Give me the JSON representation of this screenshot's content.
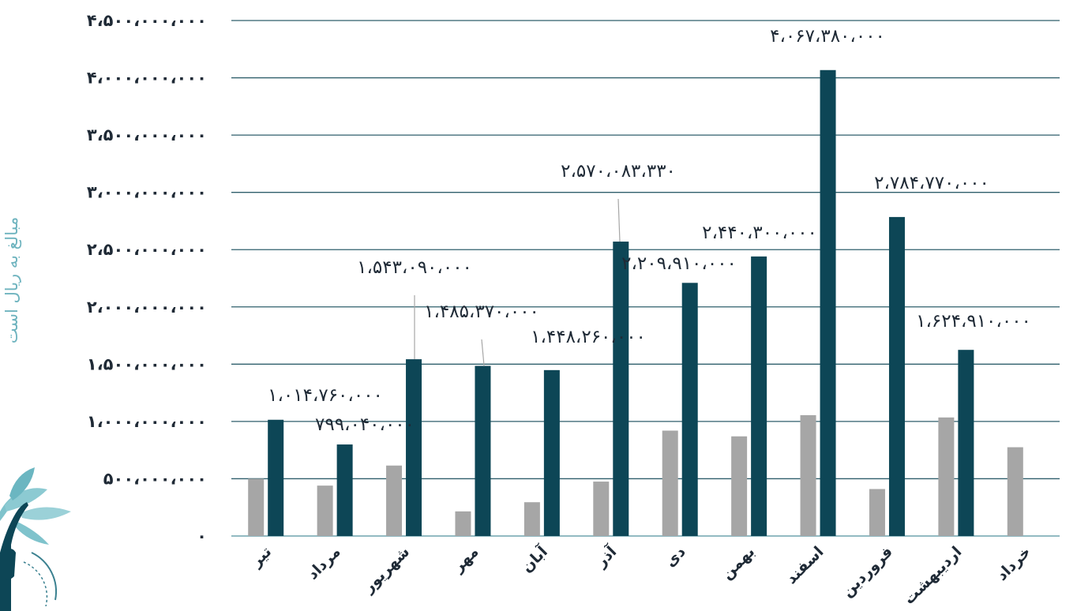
{
  "chart_data": {
    "type": "bar",
    "ylabel": "مبالغ به ریال است",
    "xlabel": "",
    "ylim": [
      0,
      4500000000
    ],
    "y_ticks": [
      0,
      500000000,
      1000000000,
      1500000000,
      2000000000,
      2500000000,
      3000000000,
      3500000000,
      4000000000,
      4500000000
    ],
    "y_tick_labels": [
      "۰",
      "۵۰۰،۰۰۰،۰۰۰",
      "۱،۰۰۰،۰۰۰،۰۰۰",
      "۱،۵۰۰،۰۰۰،۰۰۰",
      "۲،۰۰۰،۰۰۰،۰۰۰",
      "۲،۵۰۰،۰۰۰،۰۰۰",
      "۳،۰۰۰،۰۰۰،۰۰۰",
      "۳،۵۰۰،۰۰۰،۰۰۰",
      "۴،۰۰۰،۰۰۰،۰۰۰",
      "۴،۵۰۰،۰۰۰،۰۰۰"
    ],
    "grid": true,
    "legend": "none",
    "categories": [
      "تیر",
      "مرداد",
      "شهریور",
      "مهر",
      "آبان",
      "آذر",
      "دی",
      "بهمن",
      "اسفند",
      "فروردین",
      "اردیبهشت",
      "خرداد"
    ],
    "series": [
      {
        "color": "#a6a6a6",
        "values": [
          500000000,
          440000000,
          615000000,
          215000000,
          295000000,
          475000000,
          920000000,
          870000000,
          1055000000,
          410000000,
          1035000000,
          775000000
        ]
      },
      {
        "color": "#0d4656",
        "values": [
          1014760000,
          799040000,
          1543090000,
          1485370000,
          1448260000,
          2570083330,
          2209910000,
          2440300000,
          4067380000,
          2784770000,
          1624910000,
          null
        ]
      }
    ],
    "data_labels": [
      "۱،۰۱۴،۷۶۰،۰۰۰",
      "۷۹۹،۰۴۰،۰۰۰",
      "۱،۵۴۳،۰۹۰،۰۰۰",
      "۱،۴۸۵،۳۷۰،۰۰۰",
      "۱،۴۴۸،۲۶۰،۰۰۰",
      "۲،۵۷۰،۰۸۳،۳۳۰",
      "۲،۲۰۹،۹۱۰،۰۰۰",
      "۲،۴۴۰،۳۰۰،۰۰۰",
      "۴،۰۶۷،۳۸۰،۰۰۰",
      "۲،۷۸۴،۷۷۰،۰۰۰",
      "۱،۶۲۴،۹۱۰،۰۰۰",
      null
    ],
    "grid_color": "#2f5f6b",
    "axis_color": "#6fa3ad"
  }
}
